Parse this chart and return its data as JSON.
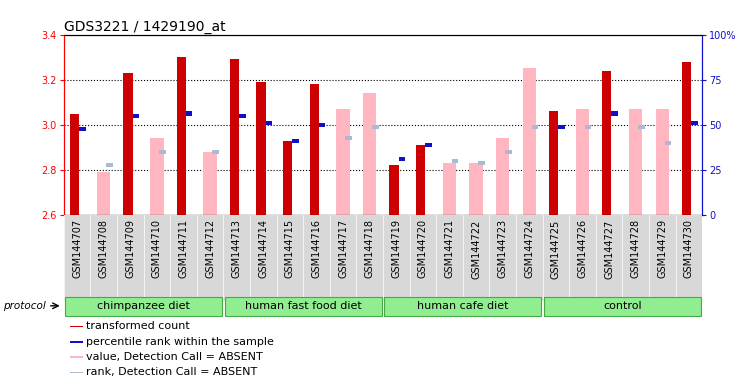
{
  "title": "GDS3221 / 1429190_at",
  "samples": [
    "GSM144707",
    "GSM144708",
    "GSM144709",
    "GSM144710",
    "GSM144711",
    "GSM144712",
    "GSM144713",
    "GSM144714",
    "GSM144715",
    "GSM144716",
    "GSM144717",
    "GSM144718",
    "GSM144719",
    "GSM144720",
    "GSM144721",
    "GSM144722",
    "GSM144723",
    "GSM144724",
    "GSM144725",
    "GSM144726",
    "GSM144727",
    "GSM144728",
    "GSM144729",
    "GSM144730"
  ],
  "red_values": [
    3.05,
    null,
    3.23,
    null,
    3.3,
    null,
    3.29,
    3.19,
    2.93,
    3.18,
    null,
    null,
    2.82,
    2.91,
    null,
    null,
    null,
    null,
    3.06,
    null,
    3.24,
    null,
    null,
    3.28
  ],
  "pink_values": [
    null,
    2.79,
    null,
    2.94,
    null,
    2.88,
    null,
    null,
    null,
    null,
    3.07,
    3.14,
    null,
    null,
    2.83,
    2.83,
    2.94,
    3.25,
    null,
    3.07,
    null,
    3.07,
    3.07,
    null
  ],
  "blue_values": [
    2.98,
    null,
    3.04,
    null,
    3.05,
    null,
    3.04,
    3.01,
    2.93,
    3.0,
    null,
    null,
    2.85,
    2.91,
    null,
    null,
    null,
    null,
    2.99,
    null,
    3.05,
    null,
    null,
    3.01
  ],
  "lightblue_values": [
    null,
    2.82,
    null,
    2.88,
    null,
    2.88,
    null,
    null,
    null,
    null,
    2.94,
    2.99,
    null,
    null,
    2.84,
    2.83,
    2.88,
    2.99,
    null,
    2.99,
    null,
    2.99,
    2.92,
    null
  ],
  "groups": [
    {
      "label": "chimpanzee diet",
      "start": 0,
      "end": 6
    },
    {
      "label": "human fast food diet",
      "start": 6,
      "end": 12
    },
    {
      "label": "human cafe diet",
      "start": 12,
      "end": 18
    },
    {
      "label": "control",
      "start": 18,
      "end": 24
    }
  ],
  "ylim": [
    2.6,
    3.4
  ],
  "yticks": [
    2.6,
    2.8,
    3.0,
    3.2,
    3.4
  ],
  "y2ticks": [
    0,
    25,
    50,
    75,
    100
  ],
  "y2labels": [
    "0",
    "25",
    "50",
    "75",
    "100%"
  ],
  "bar_width": 0.35,
  "base": 2.6,
  "red_color": "#CC0000",
  "pink_color": "#FFB6C1",
  "blue_color": "#1010CC",
  "lightblue_color": "#AABBD0",
  "group_color": "#90EE90",
  "group_border": "#44AA44",
  "xtick_bg": "#D8D8D8",
  "title_fontsize": 10,
  "tick_fontsize": 7,
  "legend_fontsize": 8
}
